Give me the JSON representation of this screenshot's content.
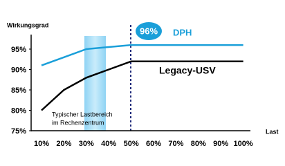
{
  "chart_data": {
    "type": "line",
    "y_label": "Wirkungsgrad",
    "x_label": "Last",
    "categories": [
      "10%",
      "20%",
      "30%",
      "40%",
      "50%",
      "60%",
      "70%",
      "80%",
      "90%",
      "100%"
    ],
    "series": [
      {
        "name": "DPH",
        "color": "#1a9fd9",
        "values": [
          91,
          93,
          95,
          95.5,
          96,
          96,
          96,
          96,
          96,
          96
        ]
      },
      {
        "name": "Legacy-USV",
        "color": "#000000",
        "values": [
          80,
          85,
          88,
          90,
          92,
          92,
          92,
          92,
          92,
          92
        ]
      }
    ],
    "ylim": [
      75,
      100
    ],
    "yticks": [
      {
        "value": 75,
        "label": "75%"
      },
      {
        "value": 80,
        "label": "80%"
      },
      {
        "value": 85,
        "label": "85%"
      },
      {
        "value": 90,
        "label": "90%"
      },
      {
        "value": 95,
        "label": "95%"
      }
    ],
    "annotations": [
      "96%",
      "Typischer Lastbereich",
      "im Rechenzentrum"
    ],
    "grid": false
  }
}
